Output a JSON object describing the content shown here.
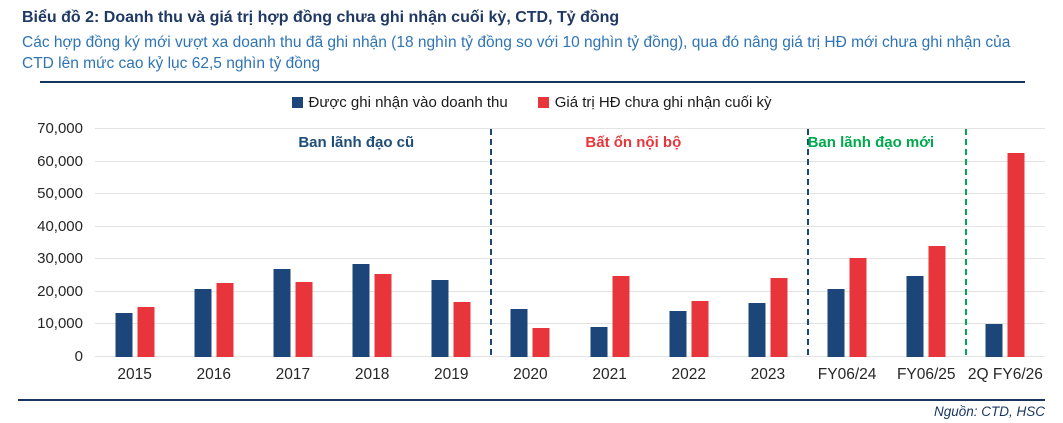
{
  "header": {
    "title": "Biểu đồ 2: Doanh thu và giá trị hợp đồng chưa ghi nhận cuối kỳ, CTD, Tỷ đồng",
    "subtitle": "Các hợp đồng ký mới vượt xa doanh thu đã ghi nhận (18 nghìn tỷ đồng so với 10 nghìn tỷ đồng), qua đó nâng giá trị HĐ mới chưa ghi nhận của CTD lên mức cao kỷ lục 62,5 nghìn tỷ đồng"
  },
  "legend": {
    "items": [
      {
        "label": "Được ghi nhận vào doanh thu",
        "color": "#1C4679"
      },
      {
        "label": "Giá trị HĐ chưa ghi nhận cuối kỳ",
        "color": "#E8353B"
      }
    ]
  },
  "chart_data": {
    "type": "bar",
    "title": "Doanh thu và giá trị hợp đồng chưa ghi nhận cuối kỳ, CTD, Tỷ đồng",
    "ylabel": "Tỷ đồng",
    "xlabel": "",
    "grid": true,
    "legend_position": "top",
    "ylim": [
      0,
      70000
    ],
    "ytick_step": 10000,
    "ytick_labels": [
      "0",
      "10,000",
      "20,000",
      "30,000",
      "40,000",
      "50,000",
      "60,000",
      "70,000"
    ],
    "categories": [
      "2015",
      "2016",
      "2017",
      "2018",
      "2019",
      "2020",
      "2021",
      "2022",
      "2023",
      "FY06/24",
      "FY06/25",
      "2Q FY6/26"
    ],
    "series": [
      {
        "name": "Được ghi nhận vào doanh thu",
        "color": "#1C4679",
        "values": [
          13500,
          20800,
          27100,
          28600,
          23700,
          14600,
          9100,
          14000,
          16500,
          21000,
          25000,
          10000
        ]
      },
      {
        "name": "Giá trị HĐ chưa ghi nhận cuối kỳ",
        "color": "#E8353B",
        "values": [
          15300,
          22800,
          23100,
          25500,
          16800,
          9000,
          24800,
          17200,
          24200,
          30300,
          34000,
          62500
        ]
      }
    ],
    "separators": [
      {
        "after_index": 4,
        "color": "#1C4679"
      },
      {
        "after_index": 8,
        "color": "#1C4679"
      },
      {
        "after_index": 10,
        "color": "#00A84E"
      }
    ],
    "annotations": [
      {
        "label": "Ban lãnh đạo cũ",
        "color": "#1F4E79",
        "center_index": 2.8
      },
      {
        "label": "Bất ổn nội bộ",
        "color": "#E8353B",
        "center_index": 6.3
      },
      {
        "label": "Ban lãnh đạo mới",
        "color": "#00A84E",
        "center_index": 9.3
      }
    ]
  },
  "footer": {
    "source": "Nguồn: CTD, HSC"
  }
}
